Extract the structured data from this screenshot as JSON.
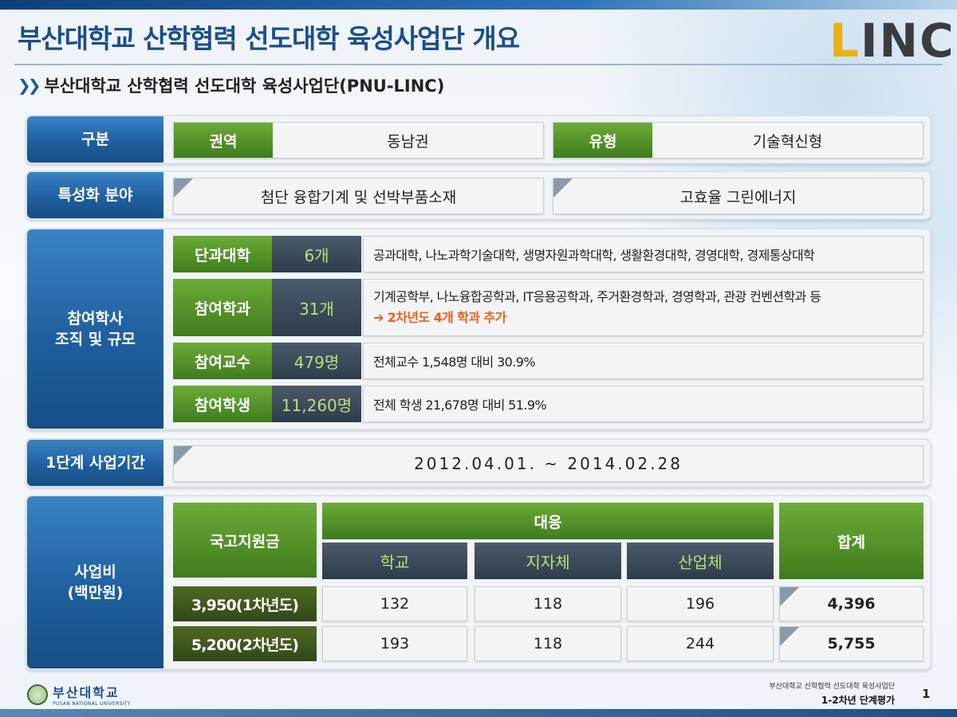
{
  "title": "부산대학교 산학협력 선도대학 육성사업단 개요",
  "logo_text": "LINC",
  "subtitle": "부산대학교 산학협력 선도대학 육성사업단(PNU-LINC)",
  "row_gubun": {
    "label": "구분",
    "region_tag": "권역",
    "region_value": "동남권",
    "type_tag": "유형",
    "type_value": "기술혁신형"
  },
  "row_special": {
    "label": "특성화 분야",
    "field1": "첨단 융합기계 및 선박부품소재",
    "field2": "고효율 그린에너지"
  },
  "row_org": {
    "label_line1": "참여학사",
    "label_line2": "조직 및 규모",
    "items": [
      {
        "tag": "단과대학",
        "count": "6개",
        "desc": "공과대학, 나노과학기술대학, 생명자원과학대학, 생활환경대학, 경영대학, 경제통상대학",
        "note": ""
      },
      {
        "tag": "참여학과",
        "count": "31개",
        "desc": "기계공학부, 나노융합공학과, IT응용공학과, 주거환경학과, 경영학과, 관광 컨벤션학과 등",
        "note": "➔ 2차년도 4개 학과 추가"
      },
      {
        "tag": "참여교수",
        "count": "479명",
        "desc": "전체교수 1,548명 대비 30.9%",
        "note": ""
      },
      {
        "tag": "참여학생",
        "count": "11,260명",
        "desc": "전체 학생 21,678명 대비 51.9%",
        "note": ""
      }
    ]
  },
  "row_period": {
    "label": "1단계 사업기간",
    "value": "2012.04.01. ~ 2014.02.28"
  },
  "row_budget": {
    "label_line1": "사업비",
    "label_line2": "(백만원)",
    "header_national": "국고지원금",
    "header_matching": "대응",
    "header_school": "학교",
    "header_local": "지자체",
    "header_industry": "산업체",
    "header_total": "합계",
    "rows": [
      {
        "national": "3,950(1차년도)",
        "school": "132",
        "local": "118",
        "industry": "196",
        "total": "4,396"
      },
      {
        "national": "5,200(2차년도)",
        "school": "193",
        "local": "118",
        "industry": "244",
        "total": "5,755"
      }
    ]
  },
  "footer": {
    "university_ko": "부산대학교",
    "university_en": "PUSAN NATIONAL UNIVERSITY",
    "sub": "부산대학교 산학협력 선도대학 육성사업단",
    "main": "1-2차년 단계평가",
    "page": "1"
  }
}
